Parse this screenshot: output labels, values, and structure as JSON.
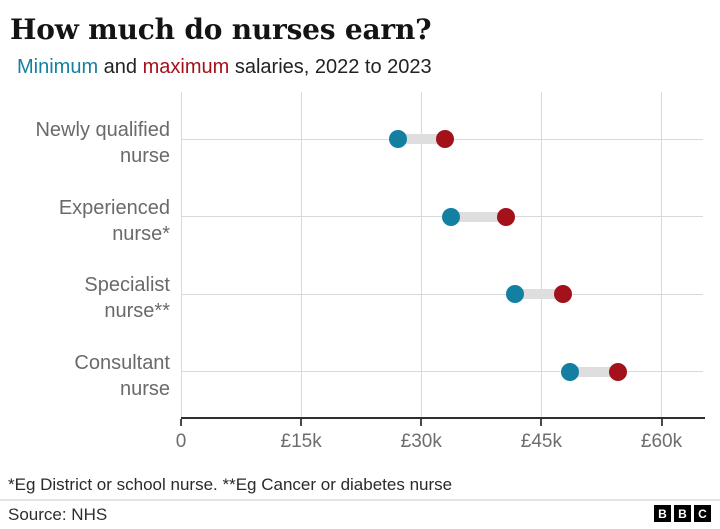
{
  "colors": {
    "min": "#1380A1",
    "max": "#A3111B",
    "connector": "#DEDEDE",
    "grid": "#D9D9D9",
    "axis": "#2E2E2E"
  },
  "header": {
    "title": "How much do nurses earn?",
    "subtitle": {
      "min_word": "Minimum",
      "and_word": " and ",
      "max_word": "maximum",
      "rest": " salaries, 2022 to 2023"
    }
  },
  "chart_data": {
    "type": "dumbbell",
    "title": "How much do nurses earn?",
    "subtitle": "Minimum and maximum salaries, 2022 to 2023",
    "categories": [
      "Newly qualified\nnurse",
      "Experienced\nnurse*",
      "Specialist\nnurse**",
      "Consultant\nnurse"
    ],
    "series": [
      {
        "name": "Minimum",
        "color_key": "min",
        "values": [
          27055,
          33706,
          41659,
          48526
        ]
      },
      {
        "name": "Maximum",
        "color_key": "max",
        "values": [
          32934,
          40588,
          47672,
          54619
        ]
      }
    ],
    "x_ticks": [
      {
        "value": 0,
        "label": "0"
      },
      {
        "value": 15000,
        "label": "£15k"
      },
      {
        "value": 30000,
        "label": "£30k"
      },
      {
        "value": 45000,
        "label": "£45k"
      },
      {
        "value": 60000,
        "label": "£60k"
      }
    ],
    "xlim": [
      0,
      65000
    ],
    "grid": true,
    "legend_position": "inline-subtitle"
  },
  "footnote": "*Eg District or school nurse. **Eg Cancer or diabetes nurse",
  "footer": {
    "source": "Source: NHS",
    "logo_letters": [
      "B",
      "B",
      "C"
    ]
  }
}
